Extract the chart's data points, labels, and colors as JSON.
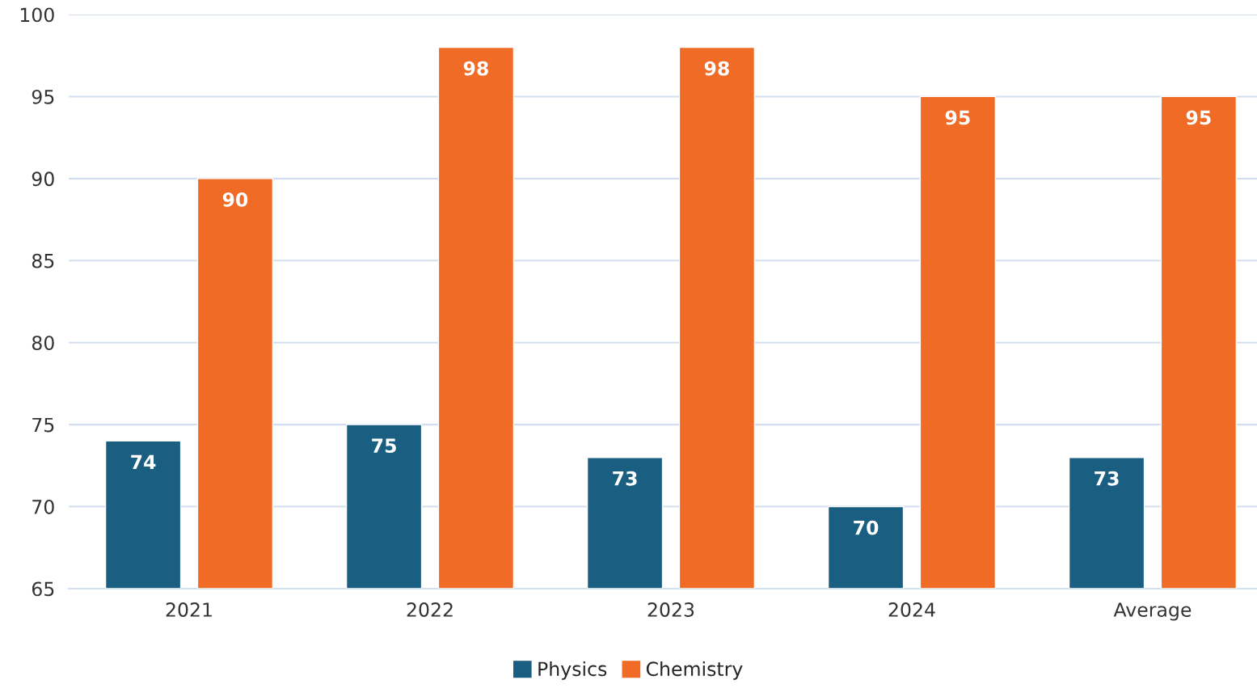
{
  "chart_data": {
    "type": "bar",
    "categories": [
      "2021",
      "2022",
      "2023",
      "2024",
      "Average"
    ],
    "series": [
      {
        "name": "Physics",
        "color": "#1a5f82",
        "values": [
          74,
          75,
          73,
          70,
          73
        ]
      },
      {
        "name": "Chemistry",
        "color": "#f06b25",
        "values": [
          90,
          98,
          98,
          95,
          95
        ]
      }
    ],
    "ylim": [
      65,
      100
    ],
    "yticks": [
      65,
      70,
      75,
      80,
      85,
      90,
      95,
      100
    ],
    "grid": "y",
    "legend": "bottom",
    "data_labels": true
  }
}
